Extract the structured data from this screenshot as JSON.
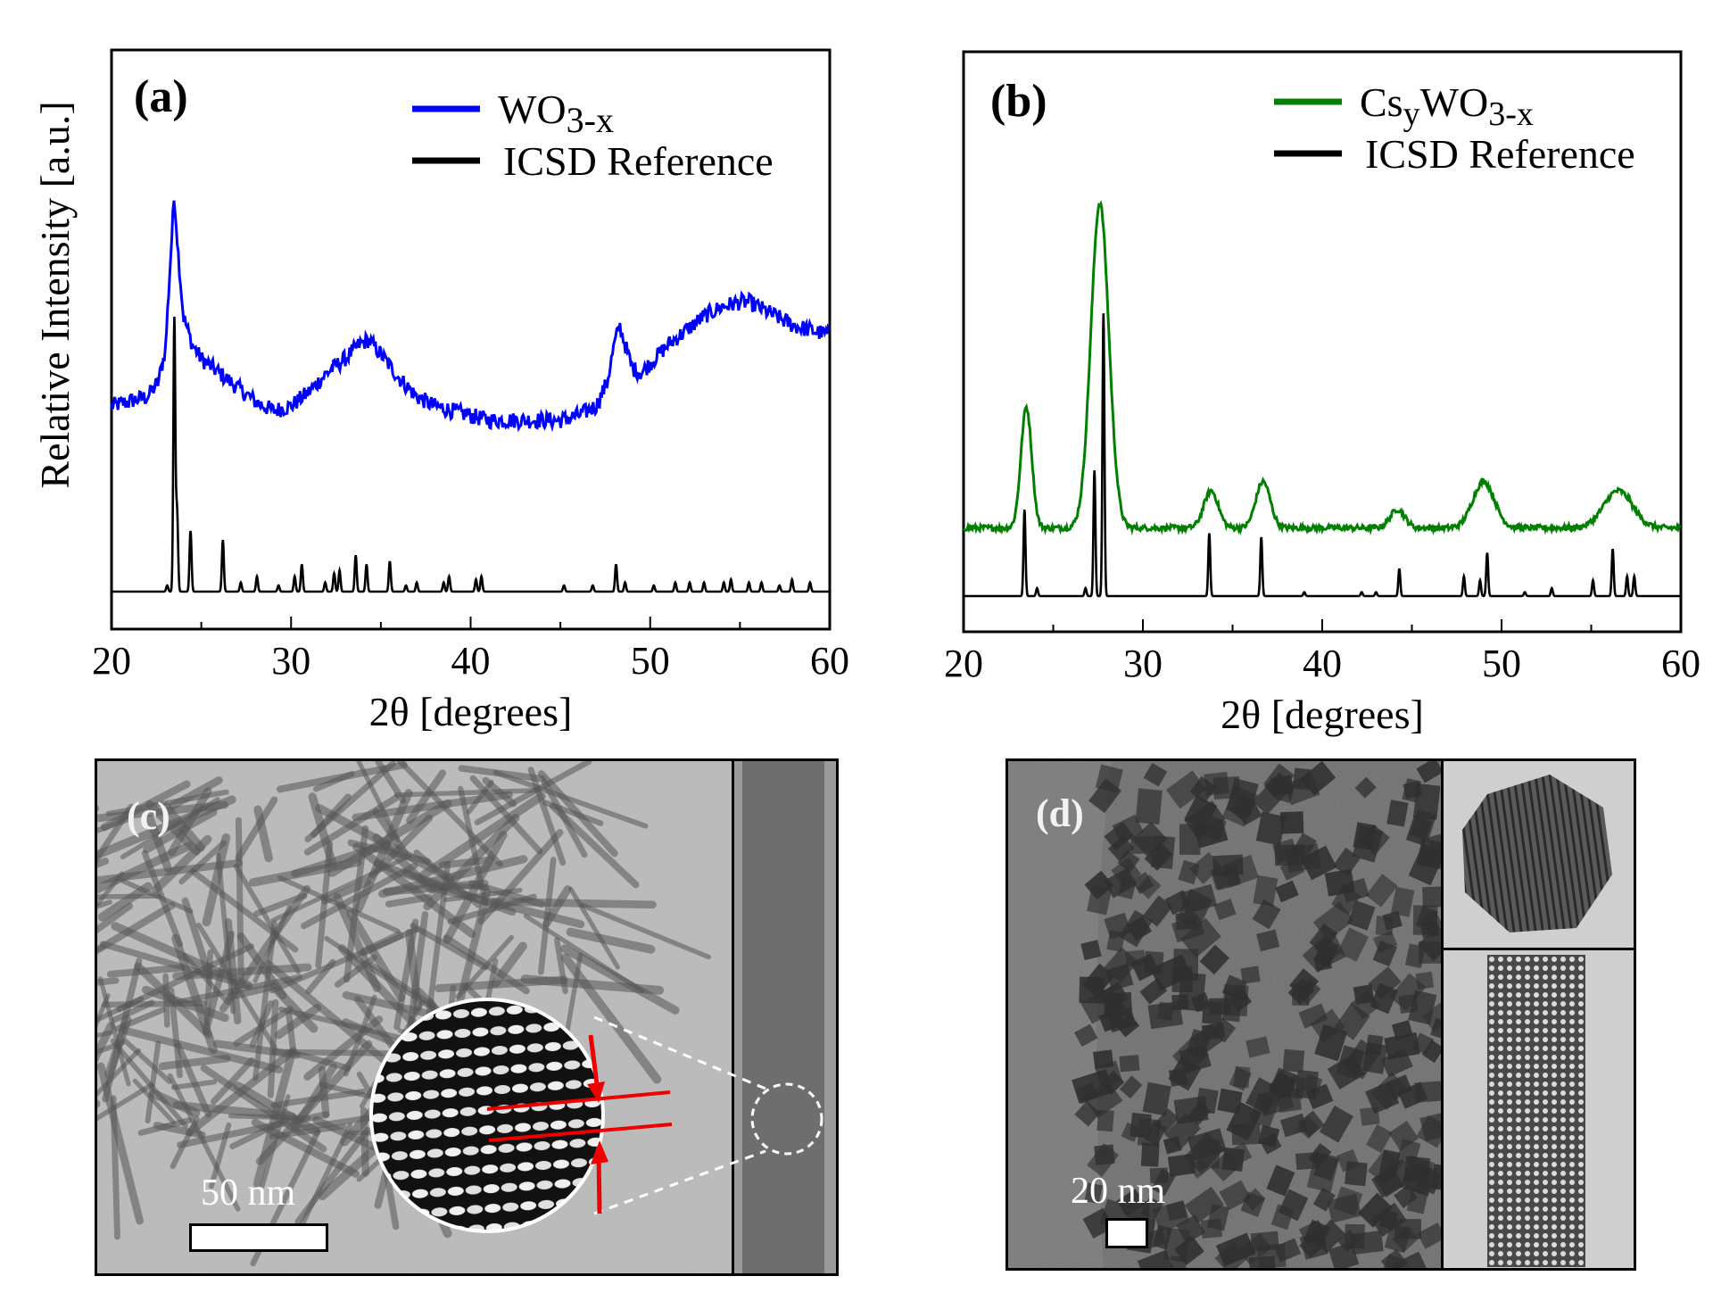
{
  "chart_data": [
    {
      "type": "line",
      "panel": "(a)",
      "xlabel": "2θ [degrees]",
      "ylabel": "Relative Intensity [a.u.]",
      "xlim": [
        20,
        60
      ],
      "xticks": [
        20,
        30,
        40,
        50,
        60
      ],
      "legend_position": "top-right",
      "series": [
        {
          "name": "WO3-x",
          "name_main": "WO",
          "name_sub": "3-x",
          "color": "#0000ff",
          "x": [
            20,
            21,
            22,
            22.6,
            23.0,
            23.3,
            23.5,
            23.7,
            24.0,
            24.5,
            25,
            26,
            27,
            28,
            29,
            30,
            31,
            32,
            33,
            33.8,
            34.3,
            35,
            36,
            37,
            38,
            39,
            40,
            41,
            42,
            43,
            44,
            45,
            46,
            47,
            47.6,
            48.0,
            48.3,
            48.6,
            49.0,
            49.5,
            50,
            51,
            52,
            53,
            54,
            55,
            55.5,
            56,
            57,
            58,
            59,
            60
          ],
          "y": [
            0.53,
            0.54,
            0.55,
            0.58,
            0.65,
            0.85,
            0.98,
            0.86,
            0.72,
            0.66,
            0.63,
            0.6,
            0.57,
            0.54,
            0.52,
            0.53,
            0.56,
            0.6,
            0.63,
            0.66,
            0.67,
            0.64,
            0.59,
            0.55,
            0.53,
            0.52,
            0.51,
            0.5,
            0.5,
            0.5,
            0.5,
            0.5,
            0.51,
            0.53,
            0.58,
            0.66,
            0.7,
            0.66,
            0.61,
            0.6,
            0.62,
            0.66,
            0.69,
            0.72,
            0.74,
            0.75,
            0.75,
            0.74,
            0.72,
            0.7,
            0.69,
            0.68
          ]
        },
        {
          "name": "ICSD Reference",
          "color": "#000000",
          "peaks": {
            "positions": [
              23.1,
              23.5,
              23.65,
              24.4,
              26.2,
              27.2,
              28.1,
              29.3,
              30.2,
              30.6,
              31.9,
              32.4,
              32.7,
              33.6,
              34.2,
              35.5,
              36.4,
              37.0,
              38.5,
              38.8,
              40.3,
              40.6,
              45.2,
              46.8,
              48.1,
              48.6,
              50.2,
              51.4,
              52.2,
              53.0,
              54.1,
              54.5,
              55.5,
              56.2,
              57.2,
              57.9,
              58.9
            ],
            "heights": [
              0.02,
              0.9,
              0.26,
              0.2,
              0.17,
              0.03,
              0.05,
              0.02,
              0.05,
              0.09,
              0.03,
              0.06,
              0.07,
              0.12,
              0.09,
              0.1,
              0.02,
              0.03,
              0.03,
              0.05,
              0.04,
              0.05,
              0.02,
              0.02,
              0.09,
              0.03,
              0.02,
              0.03,
              0.03,
              0.03,
              0.03,
              0.04,
              0.03,
              0.03,
              0.02,
              0.04,
              0.03
            ]
          }
        }
      ]
    },
    {
      "type": "line",
      "panel": "(b)",
      "xlabel": "2θ [degrees]",
      "xlim": [
        20,
        60
      ],
      "xticks": [
        20,
        30,
        40,
        50,
        60
      ],
      "legend_position": "top-right",
      "series": [
        {
          "name": "CsyWO3-x",
          "name_main": "Cs",
          "name_sub1": "y",
          "name_mid": "WO",
          "name_sub2": "3-x",
          "color": "#007f00",
          "baseline": 0.22,
          "gaussians": [
            {
              "center": 23.5,
              "height": 0.26,
              "width": 0.3
            },
            {
              "center": 27.6,
              "height": 0.7,
              "width": 0.5
            },
            {
              "center": 33.8,
              "height": 0.08,
              "width": 0.4
            },
            {
              "center": 36.7,
              "height": 0.1,
              "width": 0.4
            },
            {
              "center": 44.2,
              "height": 0.04,
              "width": 0.4
            },
            {
              "center": 49.0,
              "height": 0.1,
              "width": 0.6
            },
            {
              "center": 56.5,
              "height": 0.08,
              "width": 0.8
            }
          ]
        },
        {
          "name": "ICSD Reference",
          "color": "#000000",
          "peaks": {
            "positions": [
              23.4,
              24.1,
              26.8,
              27.3,
              27.8,
              33.7,
              36.6,
              39.0,
              42.2,
              43.0,
              44.3,
              47.9,
              48.8,
              49.2,
              51.3,
              52.8,
              55.1,
              56.2,
              57.0,
              57.4
            ],
            "heights": [
              0.22,
              0.02,
              0.02,
              0.32,
              0.72,
              0.16,
              0.15,
              0.01,
              0.01,
              0.01,
              0.07,
              0.05,
              0.04,
              0.11,
              0.01,
              0.02,
              0.04,
              0.12,
              0.05,
              0.05
            ]
          }
        }
      ]
    }
  ],
  "panel_c": {
    "label": "(c)",
    "scale_bar": "50 nm"
  },
  "panel_d": {
    "label": "(d)",
    "scale_bar": "20 nm"
  }
}
